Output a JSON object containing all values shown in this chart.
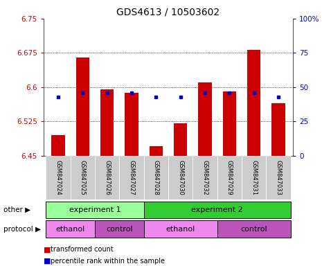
{
  "title": "GDS4613 / 10503602",
  "samples": [
    "GSM847024",
    "GSM847025",
    "GSM847026",
    "GSM847027",
    "GSM847028",
    "GSM847030",
    "GSM847032",
    "GSM847029",
    "GSM847031",
    "GSM847033"
  ],
  "bar_bottoms": [
    6.45,
    6.45,
    6.45,
    6.45,
    6.45,
    6.45,
    6.45,
    6.45,
    6.45,
    6.45
  ],
  "bar_tops": [
    6.495,
    6.665,
    6.595,
    6.588,
    6.47,
    6.52,
    6.61,
    6.59,
    6.682,
    6.565
  ],
  "dot_values_pct": [
    43,
    46,
    46,
    46,
    43,
    43,
    46,
    46,
    46,
    43
  ],
  "ylim_left": [
    6.45,
    6.75
  ],
  "yticks_left": [
    6.45,
    6.525,
    6.6,
    6.675,
    6.75
  ],
  "yticks_right": [
    0,
    25,
    50,
    75,
    100
  ],
  "ylim_right": [
    0,
    100
  ],
  "bar_color": "#cc0000",
  "dot_color": "#0000cc",
  "grid_color": "#000000",
  "title_fontsize": 10,
  "tick_fontsize": 7.5,
  "right_tick_color": "#0000cc",
  "left_tick_color": "#cc0000",
  "experiment1_color": "#99ff99",
  "experiment2_color": "#33cc33",
  "ethanol_color": "#ee88ee",
  "control_color": "#bb55bb",
  "other_label": "other",
  "protocol_label": "protocol",
  "exp1_label": "experiment 1",
  "exp2_label": "experiment 2",
  "eth_label": "ethanol",
  "ctrl_label": "control",
  "legend_items": [
    {
      "color": "#cc0000",
      "label": "transformed count"
    },
    {
      "color": "#0000cc",
      "label": "percentile rank within the sample"
    }
  ],
  "sample_bg_color": "#cccccc",
  "fig_bg": "#ffffff"
}
